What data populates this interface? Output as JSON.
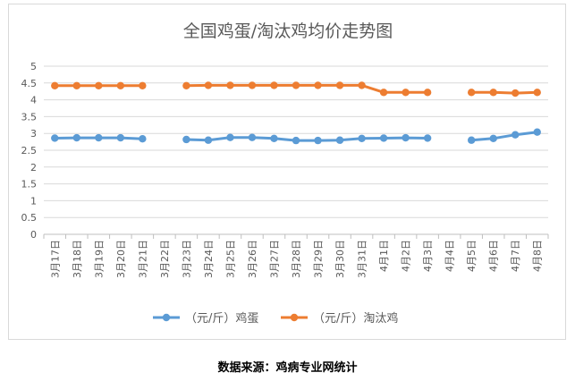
{
  "source_note": "数据来源：鸡病专业网统计",
  "chart_data": {
    "type": "line",
    "title": "全国鸡蛋/淘汰鸡均价走势图",
    "xlabel": "",
    "ylabel": "",
    "ylim": [
      0,
      5
    ],
    "yticks": [
      "0",
      "0.5",
      "1",
      "1.5",
      "2",
      "2.5",
      "3",
      "3.5",
      "4",
      "4.5",
      "5"
    ],
    "grid": true,
    "legend_position": "bottom",
    "categories": [
      "3月17日",
      "3月18日",
      "3月19日",
      "3月20日",
      "3月21日",
      "3月22日",
      "3月23日",
      "3月24日",
      "3月25日",
      "3月26日",
      "3月27日",
      "3月28日",
      "3月29日",
      "3月30日",
      "3月31日",
      "4月1日",
      "4月2日",
      "4月3日",
      "4月4日",
      "4月5日",
      "4月6日",
      "4月7日",
      "4月8日"
    ],
    "series": [
      {
        "name": "（元/斤）鸡蛋",
        "color": "#5b9bd5",
        "values": [
          2.86,
          2.87,
          2.87,
          2.87,
          2.84,
          null,
          2.82,
          2.8,
          2.88,
          2.88,
          2.85,
          2.79,
          2.79,
          2.8,
          2.85,
          2.86,
          2.87,
          2.86,
          null,
          2.8,
          2.85,
          2.96,
          3.04
        ]
      },
      {
        "name": "（元/斤）淘汰鸡",
        "color": "#ed7d31",
        "values": [
          4.42,
          4.42,
          4.42,
          4.42,
          4.42,
          null,
          4.42,
          4.43,
          4.43,
          4.43,
          4.43,
          4.43,
          4.43,
          4.43,
          4.43,
          4.22,
          4.22,
          4.22,
          null,
          4.22,
          4.22,
          4.2,
          4.22
        ]
      }
    ]
  }
}
